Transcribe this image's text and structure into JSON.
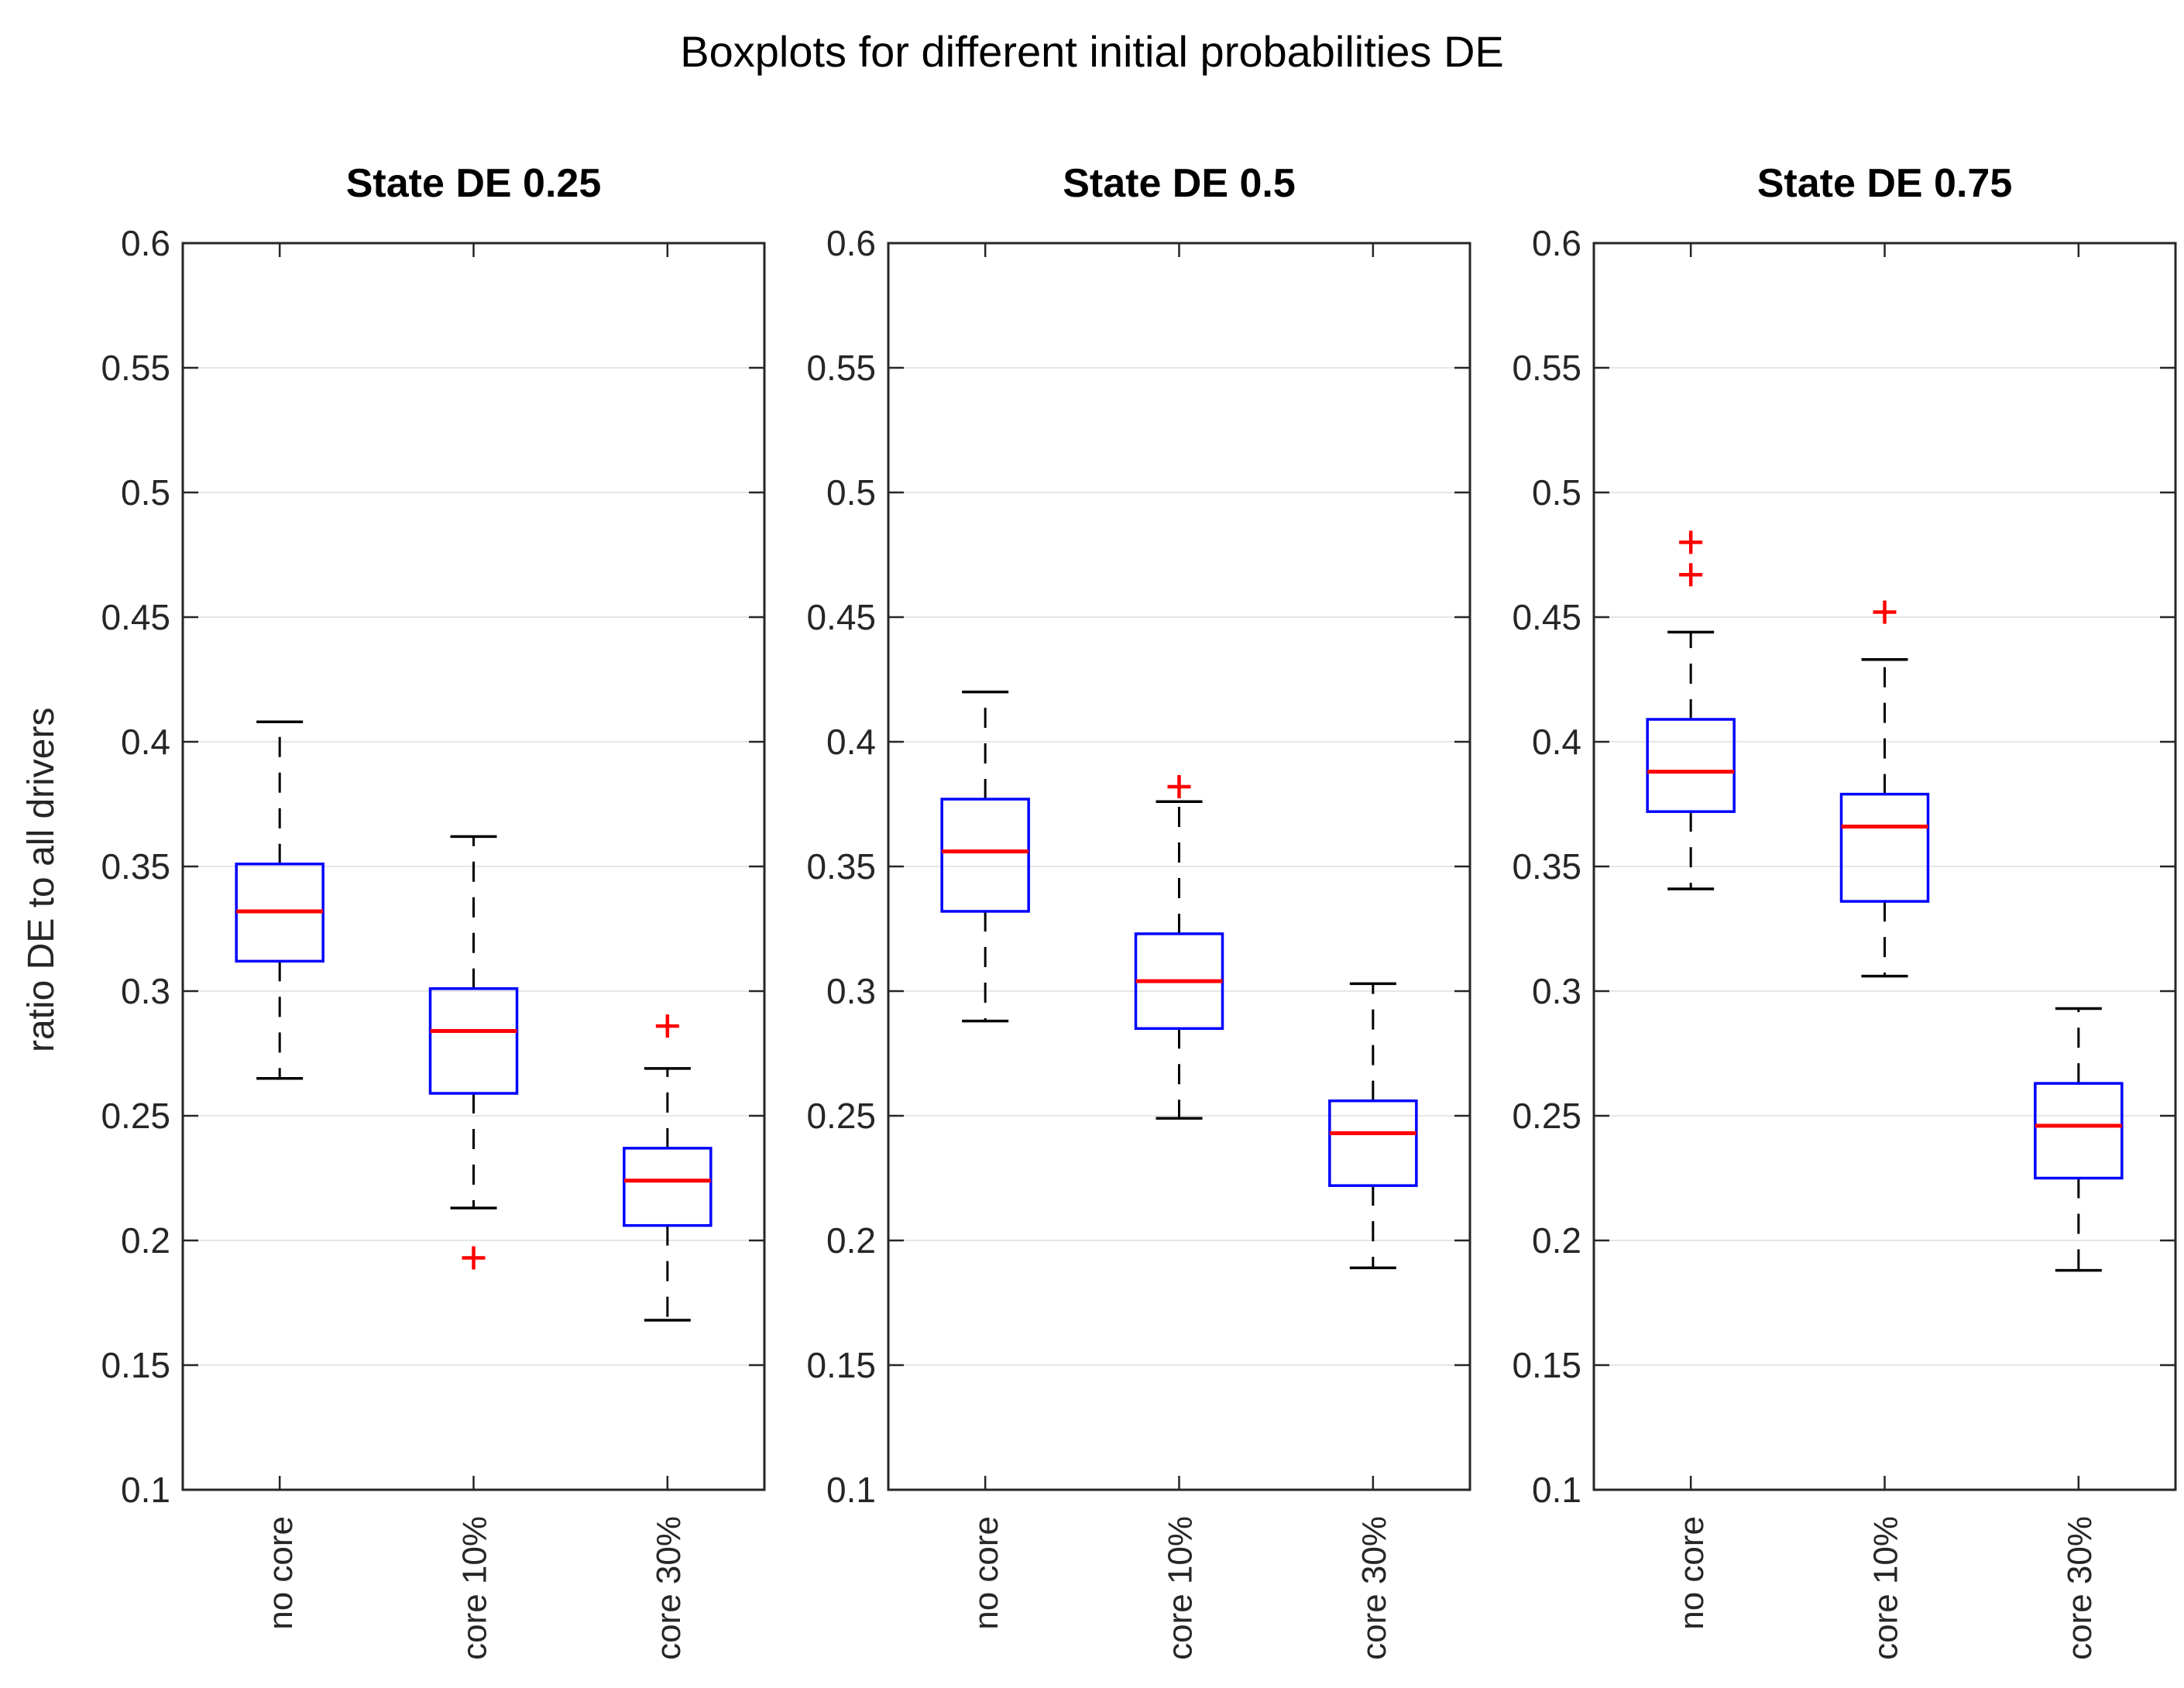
{
  "figure": {
    "title": "Boxplots for different initial probabilities DE",
    "ylabel": "ratio DE to all drivers",
    "ylim": [
      0.1,
      0.6
    ],
    "ytick_step": 0.05,
    "ytick_labels": [
      "0.6",
      "0.55",
      "0.5",
      "0.45",
      "0.4",
      "0.35",
      "0.3",
      "0.25",
      "0.2",
      "0.15",
      "0.1"
    ],
    "grid": "horizontal-only"
  },
  "colors": {
    "box": "#0000ff",
    "median": "#ff0000",
    "whisker": "#000000",
    "outlier": "#ff0000",
    "gridline": "#e6e6e6",
    "axis": "#262626",
    "tick_text": "#262626",
    "title_text": "#000000"
  },
  "chart_data": [
    {
      "type": "boxplot",
      "title": "State DE 0.25",
      "categories": [
        "no core",
        "core 10%",
        "core 30%"
      ],
      "ylim": [
        0.1,
        0.6
      ],
      "boxes": [
        {
          "label": "no core",
          "whisker_low": 0.265,
          "q1": 0.312,
          "median": 0.332,
          "q3": 0.351,
          "whisker_high": 0.408,
          "outliers": []
        },
        {
          "label": "core 10%",
          "whisker_low": 0.213,
          "q1": 0.259,
          "median": 0.284,
          "q3": 0.301,
          "whisker_high": 0.362,
          "outliers": [
            0.193
          ]
        },
        {
          "label": "core 30%",
          "whisker_low": 0.168,
          "q1": 0.206,
          "median": 0.224,
          "q3": 0.237,
          "whisker_high": 0.269,
          "outliers": [
            0.286
          ]
        }
      ]
    },
    {
      "type": "boxplot",
      "title": "State DE 0.5",
      "categories": [
        "no core",
        "core 10%",
        "core 30%"
      ],
      "ylim": [
        0.1,
        0.6
      ],
      "boxes": [
        {
          "label": "no core",
          "whisker_low": 0.288,
          "q1": 0.332,
          "median": 0.356,
          "q3": 0.377,
          "whisker_high": 0.42,
          "outliers": []
        },
        {
          "label": "core 10%",
          "whisker_low": 0.249,
          "q1": 0.285,
          "median": 0.304,
          "q3": 0.323,
          "whisker_high": 0.376,
          "outliers": [
            0.382
          ]
        },
        {
          "label": "core 30%",
          "whisker_low": 0.189,
          "q1": 0.222,
          "median": 0.243,
          "q3": 0.256,
          "whisker_high": 0.303,
          "outliers": []
        }
      ]
    },
    {
      "type": "boxplot",
      "title": "State DE 0.75",
      "categories": [
        "no core",
        "core 10%",
        "core 30%"
      ],
      "ylim": [
        0.1,
        0.6
      ],
      "boxes": [
        {
          "label": "no core",
          "whisker_low": 0.341,
          "q1": 0.372,
          "median": 0.388,
          "q3": 0.409,
          "whisker_high": 0.444,
          "outliers": [
            0.467,
            0.48
          ]
        },
        {
          "label": "core 10%",
          "whisker_low": 0.306,
          "q1": 0.336,
          "median": 0.366,
          "q3": 0.379,
          "whisker_high": 0.433,
          "outliers": [
            0.452
          ]
        },
        {
          "label": "core 30%",
          "whisker_low": 0.188,
          "q1": 0.225,
          "median": 0.246,
          "q3": 0.263,
          "whisker_high": 0.293,
          "outliers": []
        }
      ]
    }
  ]
}
